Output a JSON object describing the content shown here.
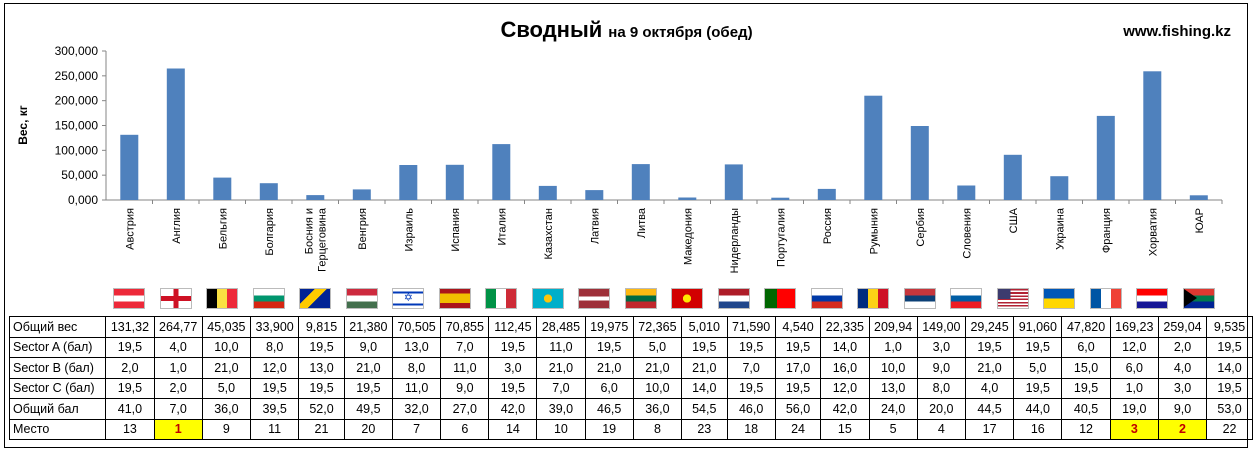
{
  "header": {
    "title": "Сводный",
    "subtitle": "на 9 октября (обед)",
    "site": "www.fishing.kz"
  },
  "chart_data": {
    "type": "bar",
    "ylabel": "Вес, кг",
    "ylim": [
      0,
      300000
    ],
    "yticks": [
      "0,000",
      "50,000",
      "100,000",
      "150,000",
      "200,000",
      "250,000",
      "300,000"
    ],
    "bar_color": "#4f81bd",
    "grid": false,
    "categories": [
      "Австрия",
      "Англия",
      "Бельгия",
      "Болгария",
      "Босния и Герцеговина",
      "Венгрия",
      "Израиль",
      "Испания",
      "Италия",
      "Казахстан",
      "Латвия",
      "Литва",
      "Македония",
      "Нидерланды",
      "Португалия",
      "Россия",
      "Румыния",
      "Сербия",
      "Словения",
      "США",
      "Украина",
      "Франция",
      "Хорватия",
      "ЮАР"
    ],
    "values": [
      131320,
      264770,
      45035,
      33900,
      9815,
      21380,
      70505,
      70855,
      112450,
      28485,
      19975,
      72365,
      5010,
      71590,
      4540,
      22335,
      209940,
      149000,
      29245,
      91060,
      47820,
      169230,
      259040,
      9535
    ]
  },
  "flags": [
    "austria",
    "england",
    "belgium",
    "bulgaria",
    "bosnia",
    "hungary",
    "israel",
    "spain",
    "italy",
    "kazakhstan",
    "latvia",
    "lithuania",
    "macedonia",
    "netherlands",
    "portugal",
    "russia",
    "romania",
    "serbia",
    "slovenia",
    "usa",
    "ukraine",
    "france",
    "croatia",
    "south-africa"
  ],
  "table": {
    "rows": [
      {
        "label": "Общий вес",
        "values": [
          "131,32",
          "264,77",
          "45,035",
          "33,900",
          "9,815",
          "21,380",
          "70,505",
          "70,855",
          "112,45",
          "28,485",
          "19,975",
          "72,365",
          "5,010",
          "71,590",
          "4,540",
          "22,335",
          "209,94",
          "149,00",
          "29,245",
          "91,060",
          "47,820",
          "169,23",
          "259,04",
          "9,535"
        ]
      },
      {
        "label": "Sector A (бал)",
        "values": [
          "19,5",
          "4,0",
          "10,0",
          "8,0",
          "19,5",
          "9,0",
          "13,0",
          "7,0",
          "19,5",
          "11,0",
          "19,5",
          "5,0",
          "19,5",
          "19,5",
          "19,5",
          "14,0",
          "1,0",
          "3,0",
          "19,5",
          "19,5",
          "6,0",
          "12,0",
          "2,0",
          "19,5"
        ]
      },
      {
        "label": "Sector B (бал)",
        "values": [
          "2,0",
          "1,0",
          "21,0",
          "12,0",
          "13,0",
          "21,0",
          "8,0",
          "11,0",
          "3,0",
          "21,0",
          "21,0",
          "21,0",
          "21,0",
          "7,0",
          "17,0",
          "16,0",
          "10,0",
          "9,0",
          "21,0",
          "5,0",
          "15,0",
          "6,0",
          "4,0",
          "14,0"
        ]
      },
      {
        "label": "Sector C (бал)",
        "values": [
          "19,5",
          "2,0",
          "5,0",
          "19,5",
          "19,5",
          "19,5",
          "11,0",
          "9,0",
          "19,5",
          "7,0",
          "6,0",
          "10,0",
          "14,0",
          "19,5",
          "19,5",
          "12,0",
          "13,0",
          "8,0",
          "4,0",
          "19,5",
          "19,5",
          "1,0",
          "3,0",
          "19,5"
        ]
      },
      {
        "label": "Общий бал",
        "values": [
          "41,0",
          "7,0",
          "36,0",
          "39,5",
          "52,0",
          "49,5",
          "32,0",
          "27,0",
          "42,0",
          "39,0",
          "46,5",
          "36,0",
          "54,5",
          "46,0",
          "56,0",
          "42,0",
          "24,0",
          "20,0",
          "44,5",
          "44,0",
          "40,5",
          "19,0",
          "9,0",
          "53,0"
        ]
      },
      {
        "label": "Место",
        "values": [
          "13",
          "1",
          "9",
          "11",
          "21",
          "20",
          "7",
          "6",
          "14",
          "10",
          "19",
          "8",
          "23",
          "18",
          "24",
          "15",
          "5",
          "4",
          "17",
          "16",
          "12",
          "3",
          "2",
          "22"
        ]
      }
    ],
    "highlight_places": [
      "1",
      "2",
      "3"
    ],
    "highlight_color": "#ffff00"
  }
}
